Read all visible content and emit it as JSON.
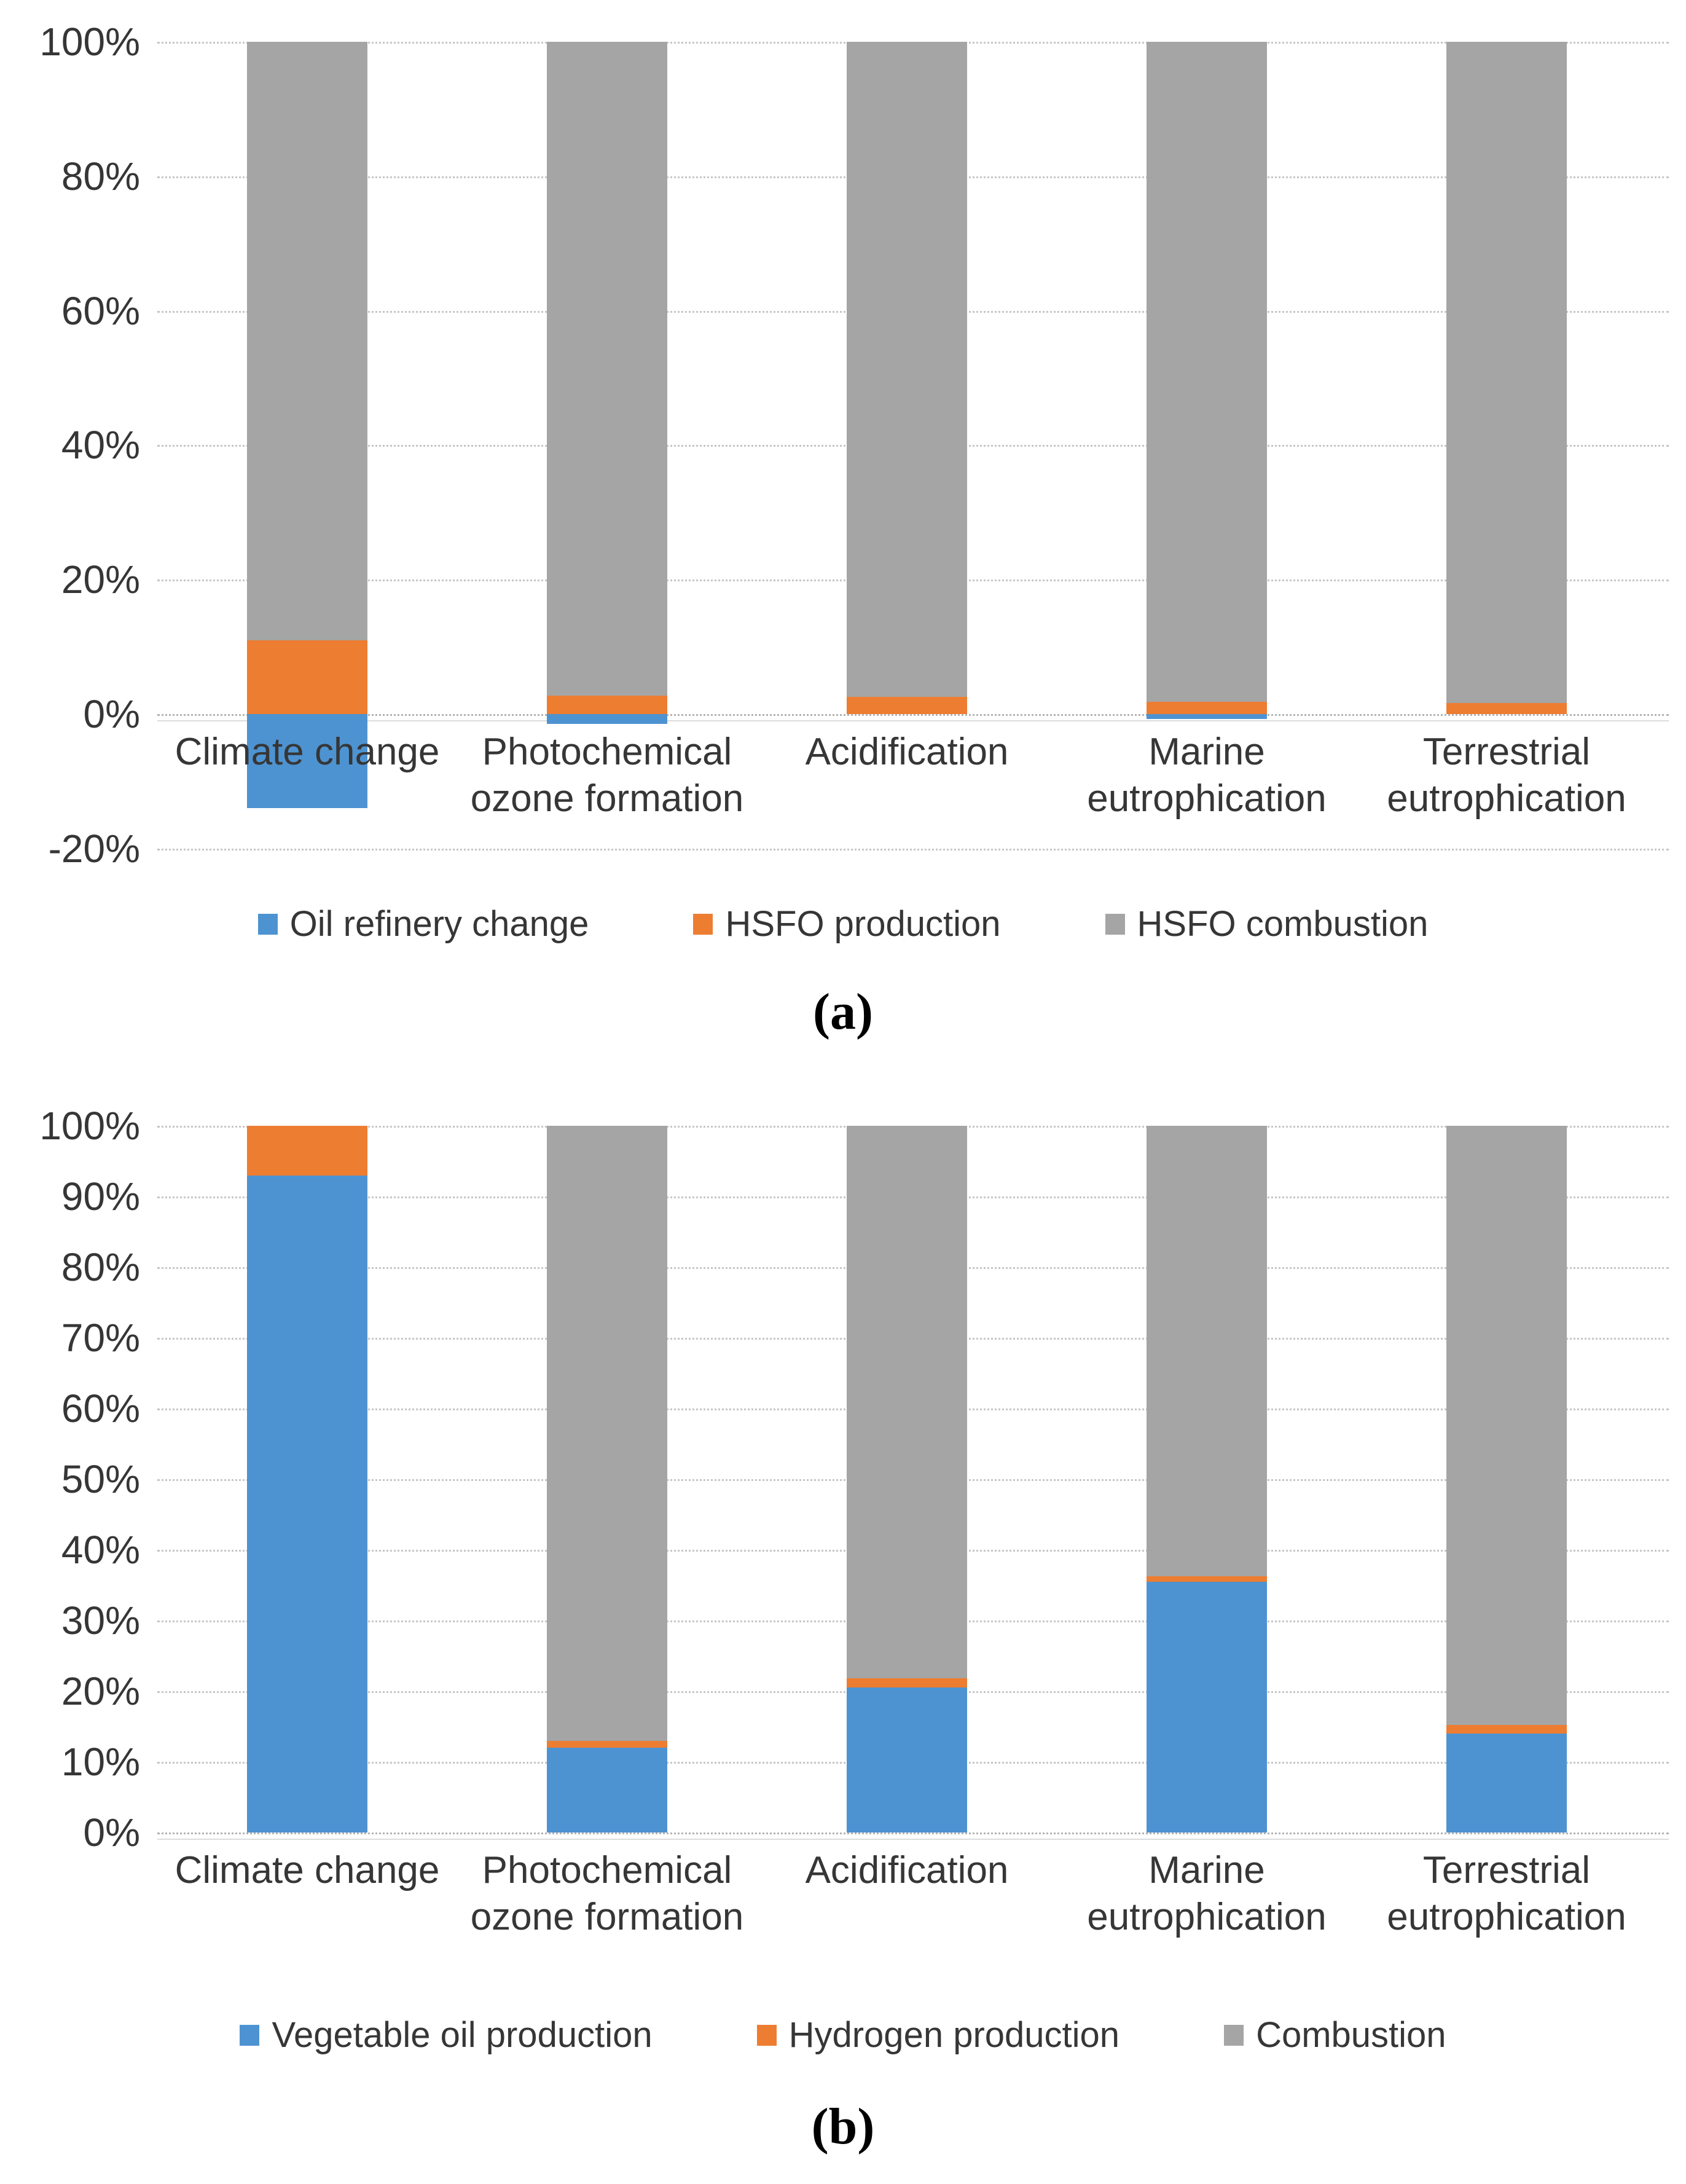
{
  "figure": {
    "background": "#ffffff",
    "caption_a": "(a)",
    "caption_b": "(b)"
  },
  "colors": {
    "blue": "#4E93D1",
    "orange": "#ED7D31",
    "gray": "#A5A5A5",
    "gridline": "#C6C6C6"
  },
  "chart_data": [
    {
      "id": "a",
      "type": "bar",
      "stacked": true,
      "units": "percent",
      "caption": "(a)",
      "title": "",
      "xlabel": "",
      "ylabel": "",
      "grid": true,
      "legend_position": "bottom",
      "ylim": [
        -20,
        100
      ],
      "ytick_step": 20,
      "ytick_labels": [
        "100%",
        "80%",
        "60%",
        "40%",
        "20%",
        "0%",
        "-20%"
      ],
      "categories": [
        "Climate change",
        "Photochemical ozone formation",
        "Acidification",
        "Marine eutrophication",
        "Terrestrial eutrophication"
      ],
      "series": [
        {
          "name": "Oil refinery change",
          "color": "#4E93D1",
          "values": [
            -14,
            -1.5,
            0,
            -0.7,
            0
          ]
        },
        {
          "name": "HSFO production",
          "color": "#ED7D31",
          "values": [
            11,
            2.7,
            2.6,
            1.8,
            1.6
          ]
        },
        {
          "name": "HSFO combustion",
          "color": "#A5A5A5",
          "values": [
            89,
            97.3,
            97.4,
            98.2,
            98.4
          ]
        }
      ]
    },
    {
      "id": "b",
      "type": "bar",
      "stacked": true,
      "units": "percent",
      "caption": "(b)",
      "title": "",
      "xlabel": "",
      "ylabel": "",
      "grid": true,
      "legend_position": "bottom",
      "ylim": [
        0,
        100
      ],
      "ytick_step": 10,
      "ytick_labels": [
        "100%",
        "90%",
        "80%",
        "70%",
        "60%",
        "50%",
        "40%",
        "30%",
        "20%",
        "10%",
        "0%"
      ],
      "categories": [
        "Climate change",
        "Photochemical ozone formation",
        "Acidification",
        "Marine eutrophication",
        "Terrestrial eutrophication"
      ],
      "series": [
        {
          "name": "Vegetable oil production",
          "color": "#4E93D1",
          "values": [
            93,
            12,
            20.5,
            35.5,
            14
          ]
        },
        {
          "name": "Hydrogen production",
          "color": "#ED7D31",
          "values": [
            7,
            1,
            1.3,
            0.8,
            1.2
          ]
        },
        {
          "name": "Combustion",
          "color": "#A5A5A5",
          "values": [
            0,
            87,
            78.2,
            63.7,
            84.8
          ]
        }
      ]
    }
  ]
}
